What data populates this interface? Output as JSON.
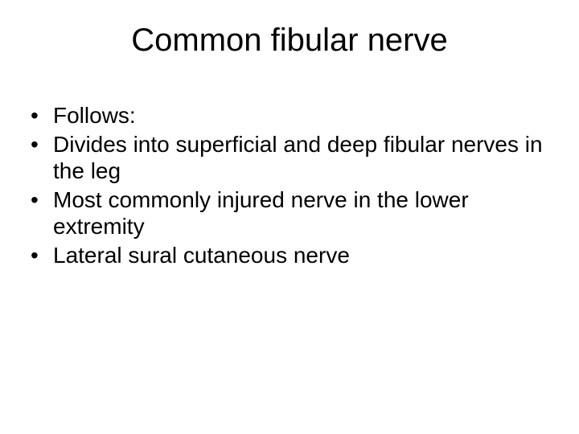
{
  "title": "Common fibular nerve",
  "bullets": [
    "Follows:",
    "Divides into superficial and deep fibular nerves in the leg",
    "Most commonly injured nerve in the lower extremity",
    "Lateral sural cutaneous nerve"
  ],
  "styling": {
    "background_color": "#ffffff",
    "text_color": "#000000",
    "title_fontsize": 40,
    "body_fontsize": 28,
    "font_family": "Arial"
  }
}
